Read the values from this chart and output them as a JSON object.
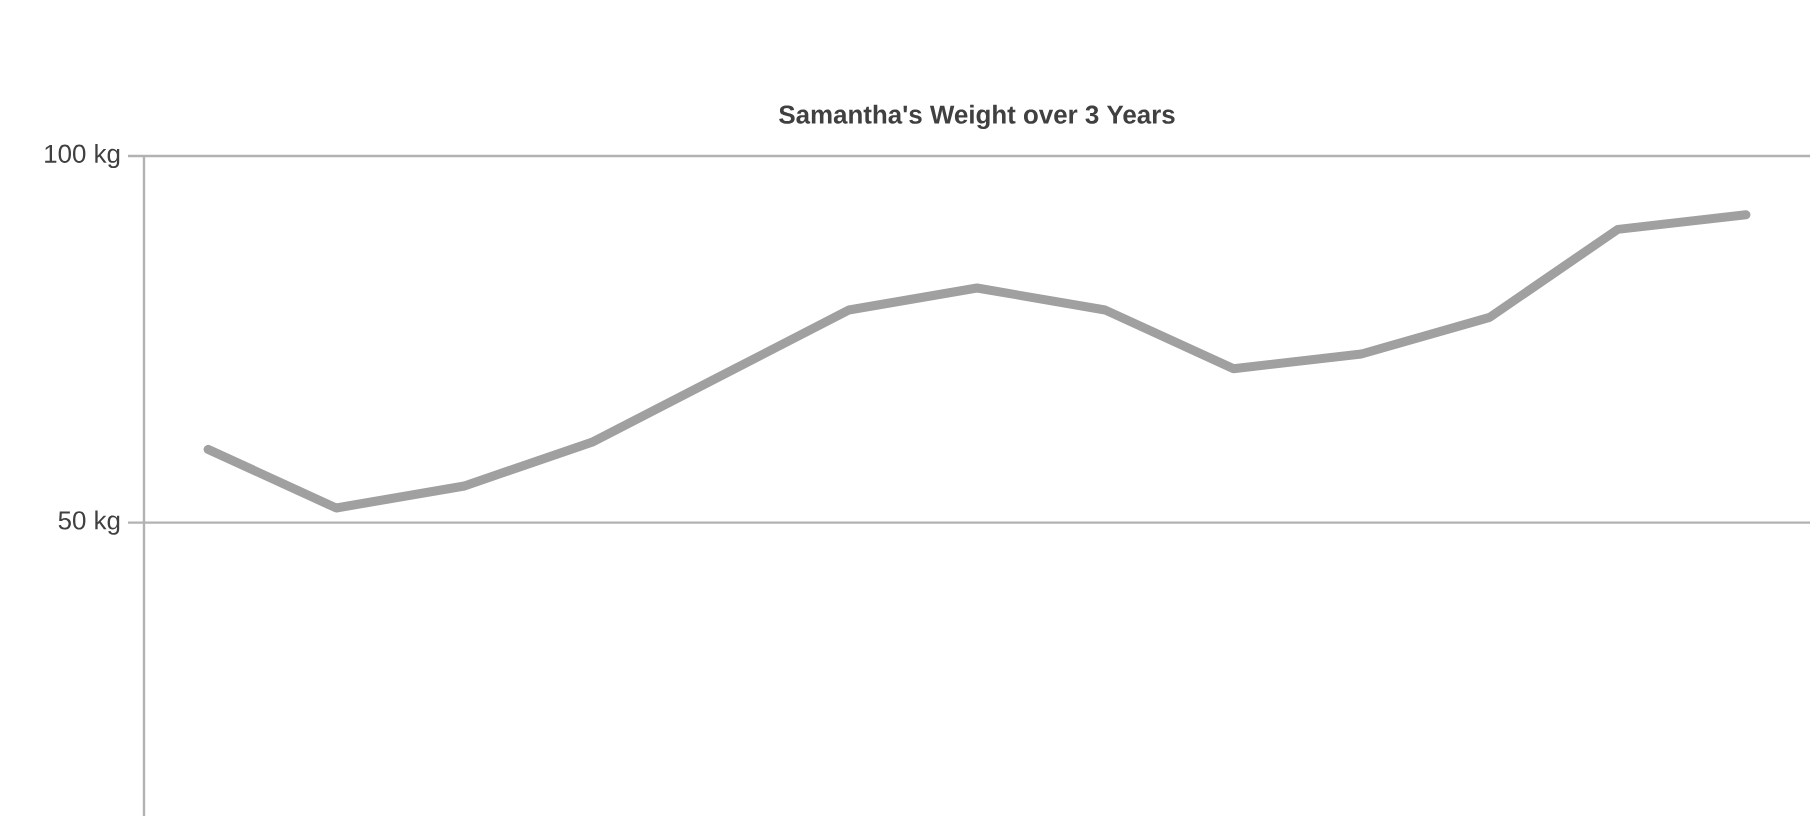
{
  "chart_data": {
    "type": "line",
    "title": "Samantha's Weight over 3 Years",
    "categories": [
      null,
      null,
      null,
      null,
      null,
      null,
      null,
      null,
      null,
      null,
      null,
      null,
      null
    ],
    "values": [
      60,
      52,
      55,
      61,
      70,
      79,
      82,
      79,
      71,
      73,
      78,
      90,
      92
    ],
    "color": "#a0a0a0",
    "ylim": [
      10,
      100
    ],
    "yticks": [
      {
        "value": 50,
        "label": "50 kg"
      },
      {
        "value": 100,
        "label": "100 kg"
      }
    ],
    "grid": "y",
    "marker": "none",
    "line_style": "solid"
  }
}
